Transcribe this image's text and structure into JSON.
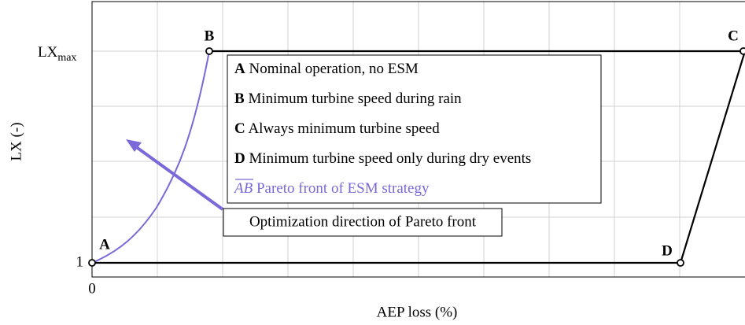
{
  "x_label": "AEP loss (%)",
  "y_label": "LX (-)",
  "x_ticks": [
    "0"
  ],
  "y_ticks": [
    "1",
    {
      "text": "LX",
      "subscript": "max"
    }
  ],
  "points": [
    "A",
    "B",
    "C",
    "D"
  ],
  "legend": [
    {
      "key": "A",
      "text": "Nominal operation, no ESM"
    },
    {
      "key": "B",
      "text": "Minimum turbine speed during rain"
    },
    {
      "key": "C",
      "text": "Always minimum turbine speed"
    },
    {
      "key": "D",
      "text": "Minimum turbine speed only during dry events"
    },
    {
      "key": "AB",
      "text": "Pareto front of ESM strategy"
    }
  ],
  "annotation": "Optimization direction of Pareto front"
}
